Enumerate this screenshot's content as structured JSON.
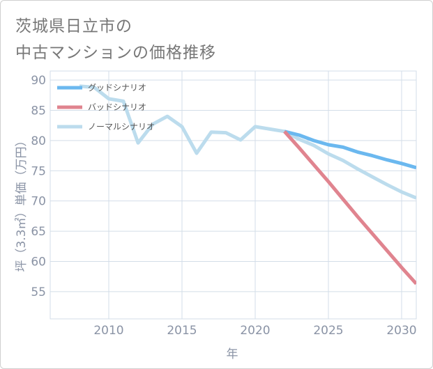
{
  "title": {
    "line1": "茨城県日立市の",
    "line2": "中古マンションの価格推移"
  },
  "colors": {
    "good": "#6bb8ef",
    "bad": "#e0848f",
    "normal": "#bcdced",
    "grid": "#d3dde8",
    "tick": "#8a93a5"
  },
  "chart_data": {
    "type": "line",
    "title": "茨城県日立市の中古マンションの価格推移",
    "xlabel": "年",
    "ylabel": "坪（3.3㎡）単価（万円）",
    "xlim": [
      2006,
      2031
    ],
    "ylim": [
      50.5,
      91.5
    ],
    "xticks": [
      2010,
      2015,
      2020,
      2025,
      2030
    ],
    "yticks": [
      55,
      60,
      65,
      70,
      75,
      80,
      85,
      90
    ],
    "legend_position": "top-left",
    "series": [
      {
        "name": "グッドシナリオ",
        "color": "#6bb8ef",
        "x": [
          2022,
          2023,
          2024,
          2025,
          2026,
          2027,
          2028,
          2029,
          2030,
          2031
        ],
        "y": [
          81.5,
          80.9,
          80.0,
          79.3,
          78.9,
          78.1,
          77.5,
          76.8,
          76.2,
          75.5
        ]
      },
      {
        "name": "バッドシナリオ",
        "color": "#e0848f",
        "x": [
          2022,
          2023,
          2024,
          2025,
          2026,
          2027,
          2028,
          2029,
          2030,
          2031
        ],
        "y": [
          81.5,
          78.8,
          76.0,
          73.2,
          70.3,
          67.4,
          64.6,
          61.8,
          59.0,
          56.3
        ]
      },
      {
        "name": "ノーマルシナリオ",
        "color": "#bcdced",
        "x": [
          2008,
          2009,
          2010,
          2011,
          2012,
          2013,
          2014,
          2015,
          2016,
          2017,
          2018,
          2019,
          2020,
          2021,
          2022,
          2023,
          2024,
          2025,
          2026,
          2027,
          2028,
          2029,
          2030,
          2031
        ],
        "y": [
          89.0,
          88.8,
          86.9,
          86.5,
          79.6,
          82.7,
          84.0,
          82.3,
          77.9,
          81.4,
          81.3,
          80.1,
          82.3,
          81.9,
          81.5,
          80.2,
          79.2,
          77.8,
          76.7,
          75.3,
          74.0,
          72.7,
          71.5,
          70.5
        ]
      }
    ]
  }
}
